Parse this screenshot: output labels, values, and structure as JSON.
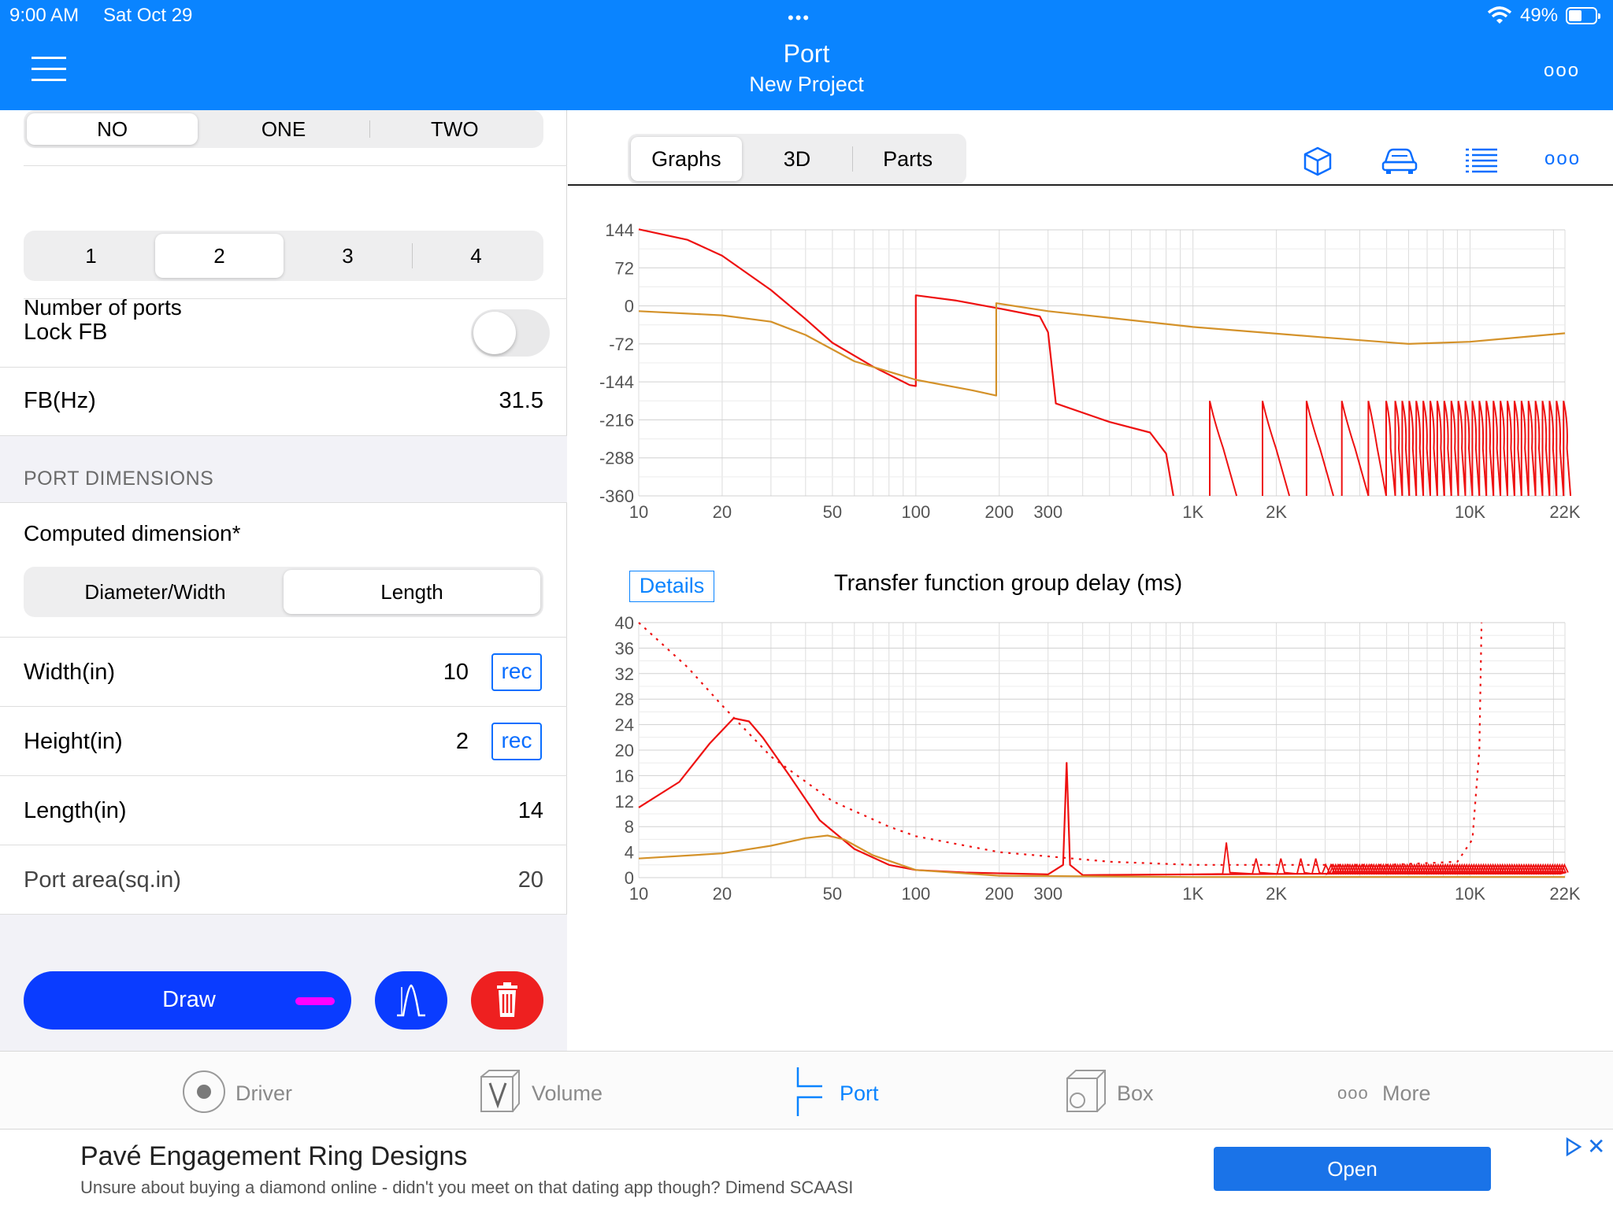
{
  "status_bar": {
    "time": "9:00 AM",
    "date": "Sat Oct 29",
    "battery": "49%"
  },
  "header": {
    "title": "Port",
    "subtitle": "New Project",
    "dots": "•••",
    "more": "ooo"
  },
  "left": {
    "flare_options": [
      {
        "label": "NO",
        "selected": true
      },
      {
        "label": "ONE",
        "selected": false
      },
      {
        "label": "TWO",
        "selected": false
      }
    ],
    "num_ports_label": "Number of ports",
    "num_ports_options": [
      {
        "label": "1",
        "selected": false
      },
      {
        "label": "2",
        "selected": true
      },
      {
        "label": "3",
        "selected": false
      },
      {
        "label": "4",
        "selected": false
      }
    ],
    "lock_fb_label": "Lock FB",
    "lock_fb_on": false,
    "fb_label": "FB(Hz)",
    "fb_value": "31.5",
    "section_label": "PORT DIMENSIONS",
    "computed_label": "Computed dimension*",
    "computed_options": [
      {
        "label": "Diameter/Width",
        "selected": false
      },
      {
        "label": "Length",
        "selected": true
      }
    ],
    "width_label": "Width(in)",
    "width_value": "10",
    "height_label": "Height(in)",
    "height_value": "2",
    "length_label": "Length(in)",
    "length_value": "14",
    "area_label": "Port area(sq.in)",
    "area_value": "20",
    "rec_label": "rec",
    "draw_label": "Draw",
    "draw_marker_color": "#ff00ff"
  },
  "right": {
    "tabs": [
      {
        "label": "Graphs",
        "selected": true
      },
      {
        "label": "3D",
        "selected": false
      },
      {
        "label": "Parts",
        "selected": false
      }
    ],
    "tool_icons": [
      "cube-icon",
      "car-icon",
      "list-icon",
      "more-icon"
    ],
    "more_label": "ooo",
    "details_label": "Details",
    "chart_title": "Transfer function group delay (ms)"
  },
  "chart_data": [
    {
      "type": "line",
      "title": "",
      "x_scale": "log",
      "xlim": [
        10,
        22000
      ],
      "ylim": [
        -360,
        144
      ],
      "x_tick_labels": [
        "10",
        "20",
        "50",
        "100",
        "200",
        "300",
        "1K",
        "2K",
        "10K",
        "22K"
      ],
      "x_tick_values": [
        10,
        20,
        50,
        100,
        200,
        300,
        1000,
        2000,
        10000,
        22000
      ],
      "y_ticks": [
        144,
        72,
        0,
        -72,
        -144,
        -216,
        -288,
        -360
      ],
      "grid": true,
      "series": [
        {
          "color": "#ee1111",
          "x": [
            10,
            15,
            20,
            30,
            40,
            50,
            70,
            95,
            100,
            100,
            140,
            200,
            280,
            300,
            320,
            500,
            700,
            800,
            850
          ],
          "y": [
            145,
            125,
            95,
            30,
            -25,
            -70,
            -115,
            -150,
            -152,
            20,
            10,
            -5,
            -20,
            -50,
            -185,
            -220,
            -240,
            -280,
            -360
          ]
        },
        {
          "color": "#d4922a",
          "x": [
            10,
            20,
            30,
            40,
            60,
            100,
            160,
            195,
            195,
            300,
            1000,
            3000,
            6000,
            10000,
            22000
          ],
          "y": [
            -10,
            -18,
            -30,
            -55,
            -105,
            -140,
            -160,
            -170,
            5,
            -10,
            -40,
            -60,
            -72,
            -68,
            -52
          ]
        }
      ],
      "spikes": {
        "color": "#ee1111",
        "from_x": 1000,
        "to_x": 22000,
        "top": -180,
        "bottom": -360
      }
    },
    {
      "type": "line",
      "title": "Transfer function group delay (ms)",
      "x_scale": "log",
      "xlim": [
        10,
        22000
      ],
      "ylim": [
        0,
        40
      ],
      "x_tick_labels": [
        "10",
        "20",
        "50",
        "100",
        "200",
        "300",
        "1K",
        "2K",
        "10K",
        "22K"
      ],
      "x_tick_values": [
        10,
        20,
        50,
        100,
        200,
        300,
        1000,
        2000,
        10000,
        22000
      ],
      "y_ticks": [
        40,
        36,
        32,
        28,
        24,
        20,
        16,
        12,
        8,
        4,
        0
      ],
      "grid": true,
      "series": [
        {
          "color": "#ee1111",
          "x": [
            10,
            14,
            18,
            22,
            25,
            28,
            35,
            45,
            60,
            80,
            100,
            150,
            300,
            340,
            350,
            360,
            400,
            1000,
            22000
          ],
          "y": [
            11,
            15,
            21,
            25,
            24.5,
            22,
            16,
            9,
            4.5,
            2,
            1.2,
            0.8,
            0.5,
            2,
            18,
            2,
            0.4,
            0.5,
            0.8
          ]
        },
        {
          "color": "#d4922a",
          "x": [
            10,
            20,
            30,
            40,
            48,
            55,
            70,
            100,
            200,
            1000,
            22000
          ],
          "y": [
            3,
            3.8,
            5,
            6.2,
            6.6,
            6,
            3.5,
            1.2,
            0.3,
            0.1,
            0.1
          ]
        },
        {
          "color": "#ee1111",
          "dashed": true,
          "x": [
            10,
            15,
            20,
            30,
            50,
            80,
            100,
            200,
            500,
            1000,
            5000,
            9000,
            10200,
            10800,
            11000
          ],
          "y": [
            40,
            33,
            27,
            19,
            12,
            8,
            6.5,
            4,
            2.5,
            2,
            2,
            2.5,
            6,
            20,
            40
          ]
        }
      ],
      "ripple": {
        "color": "#ee1111",
        "from_x": 1000,
        "to_x": 22000
      }
    }
  ],
  "tabbar": [
    {
      "label": "Driver",
      "icon": "driver-icon",
      "active": false
    },
    {
      "label": "Volume",
      "icon": "volume-icon",
      "active": false
    },
    {
      "label": "Port",
      "icon": "port-icon",
      "active": true
    },
    {
      "label": "Box",
      "icon": "box-icon",
      "active": false
    },
    {
      "label": "More",
      "icon": "more-icon",
      "active": false
    }
  ],
  "ad": {
    "title": "Pavé Engagement Ring Designs",
    "body": "Unsure about buying a diamond online - didn't you meet on that dating app though? Dimend SCAASI",
    "open_label": "Open",
    "close_label": "✕"
  }
}
